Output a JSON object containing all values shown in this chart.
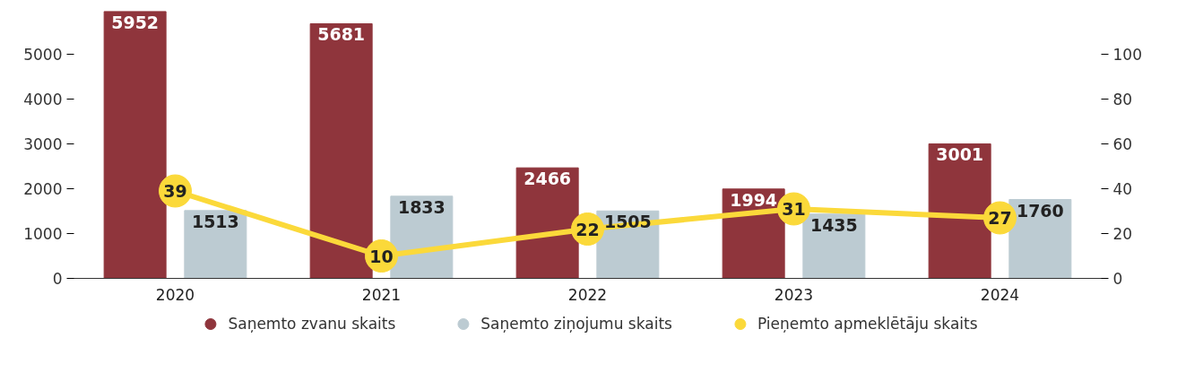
{
  "chart_data": {
    "type": "bar",
    "categories": [
      "2020",
      "2021",
      "2022",
      "2023",
      "2024"
    ],
    "series": [
      {
        "name": "Saņemto zvanu skaits",
        "color": "#8f353c",
        "values": [
          5952,
          5681,
          2466,
          1994,
          3001
        ]
      },
      {
        "name": "Saņemto ziņojumu skaits",
        "color": "#bccbd2",
        "values": [
          1513,
          1833,
          1505,
          1435,
          1760
        ]
      },
      {
        "name": "Pieņemto apmeklētāju skaits",
        "color": "#fbd93a",
        "type": "line",
        "axis": "y2",
        "marker": "circle",
        "values": [
          39,
          10,
          22,
          31,
          27
        ]
      }
    ],
    "ylim": [
      0,
      6000
    ],
    "yticks": [
      0,
      1000,
      2000,
      3000,
      4000,
      5000
    ],
    "y2lim": [
      0,
      120
    ],
    "y2ticks": [
      0,
      20,
      40,
      60,
      80,
      100
    ],
    "data_labels": true,
    "grid": false,
    "legend": "bottom"
  }
}
